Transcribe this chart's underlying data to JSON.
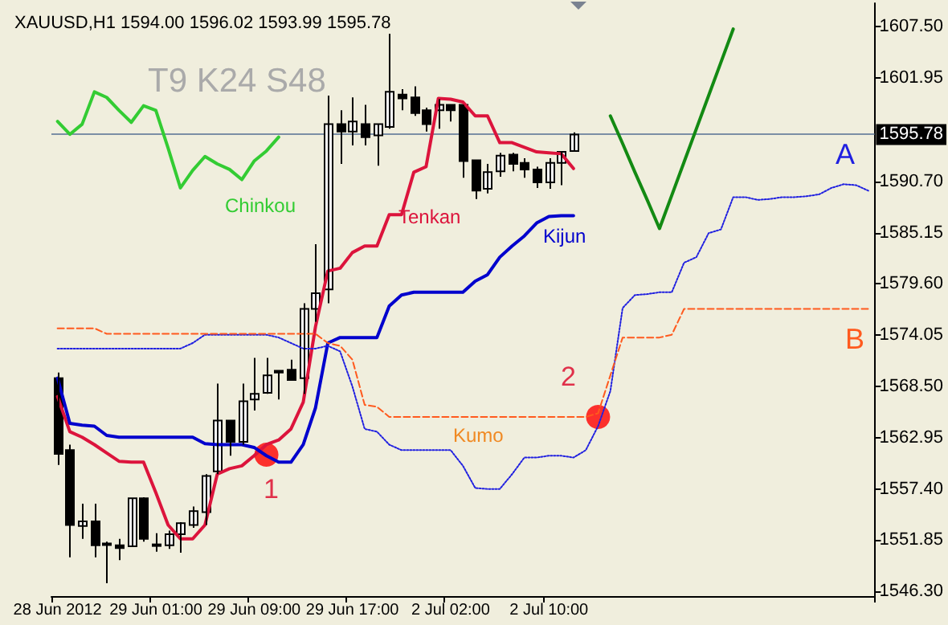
{
  "chart_data": {
    "type": "candlestick",
    "title": "XAUUSD,H1 1594.00 1596.02 1593.99 1595.78",
    "categories": [
      "28 Jun 2012",
      null,
      null,
      null,
      null,
      null,
      null,
      null,
      "29 Jun 01:00",
      null,
      null,
      null,
      null,
      null,
      null,
      null,
      "29 Jun 09:00",
      null,
      null,
      null,
      null,
      null,
      null,
      null,
      "29 Jun 17:00",
      null,
      null,
      null,
      null,
      null,
      null,
      null,
      "2 Jul 02:00",
      null,
      null,
      null,
      null,
      null,
      null,
      null,
      "2 Jul 10:00",
      null,
      null,
      null,
      null,
      null,
      null,
      null,
      null,
      null,
      null,
      null,
      null,
      null,
      null,
      null,
      null,
      null,
      null,
      null,
      null,
      null,
      null,
      null,
      null,
      null,
      null
    ],
    "ohlc": [
      [
        1569.4,
        1570.0,
        1560.0,
        1561.2
      ],
      [
        1561.6,
        1562.2,
        1550.0,
        1553.5
      ],
      [
        1553.4,
        1555.8,
        1552.0,
        1553.9
      ],
      [
        1553.9,
        1555.8,
        1550.0,
        1551.3
      ],
      [
        1551.4,
        1551.7,
        1547.2,
        1551.5
      ],
      [
        1551.3,
        1552.0,
        1549.7,
        1551.0
      ],
      [
        1551.2,
        1556.4,
        1551.2,
        1556.4
      ],
      [
        1556.4,
        1556.5,
        1551.7,
        1552.0
      ],
      [
        1551.3,
        1552.6,
        1550.6,
        1551.4
      ],
      [
        1551.3,
        1552.9,
        1550.9,
        1552.5
      ],
      [
        1552.5,
        1553.8,
        1550.5,
        1553.7
      ],
      [
        1553.5,
        1555.5,
        1553.2,
        1555.0
      ],
      [
        1554.9,
        1559.0,
        1553.5,
        1558.8
      ],
      [
        1559.3,
        1568.8,
        1559.0,
        1564.8
      ],
      [
        1564.8,
        1564.8,
        1561.0,
        1562.5
      ],
      [
        1562.5,
        1568.8,
        1562.2,
        1566.9
      ],
      [
        1567.1,
        1571.6,
        1565.9,
        1567.7
      ],
      [
        1567.8,
        1571.6,
        1567.7,
        1569.7
      ],
      [
        1570.2,
        1570.2,
        1567.1,
        1570.0
      ],
      [
        1570.3,
        1571.4,
        1569.2,
        1569.2
      ],
      [
        1569.4,
        1577.5,
        1567.7,
        1576.9
      ],
      [
        1576.9,
        1583.9,
        1575.5,
        1578.6
      ],
      [
        1579.0,
        1600.0,
        1577.5,
        1596.9
      ],
      [
        1596.9,
        1598.4,
        1592.6,
        1596.1
      ],
      [
        1596.1,
        1599.8,
        1594.6,
        1597.2
      ],
      [
        1596.9,
        1599.0,
        1594.6,
        1595.5
      ],
      [
        1595.7,
        1596.9,
        1592.4,
        1596.9
      ],
      [
        1596.6,
        1606.7,
        1596.4,
        1600.4
      ],
      [
        1600.1,
        1600.7,
        1598.4,
        1599.7
      ],
      [
        1599.8,
        1601.0,
        1597.8,
        1598.1
      ],
      [
        1598.4,
        1598.7,
        1596.1,
        1596.9
      ],
      [
        1598.4,
        1599.6,
        1596.4,
        1599.0
      ],
      [
        1599.0,
        1599.0,
        1597.2,
        1598.4
      ],
      [
        1599.0,
        1599.0,
        1591.1,
        1592.9
      ],
      [
        1593.0,
        1593.0,
        1588.8,
        1589.7
      ],
      [
        1589.9,
        1592.6,
        1589.4,
        1591.7
      ],
      [
        1591.8,
        1593.8,
        1591.2,
        1593.5
      ],
      [
        1593.6,
        1593.8,
        1591.8,
        1592.6
      ],
      [
        1592.7,
        1593.2,
        1591.1,
        1592.0
      ],
      [
        1592.0,
        1592.3,
        1590.0,
        1590.6
      ],
      [
        1590.6,
        1593.2,
        1589.9,
        1592.7
      ],
      [
        1592.7,
        1594.0,
        1590.3,
        1593.9
      ],
      [
        1594.0,
        1596.02,
        1593.99,
        1595.78
      ],
      null,
      null,
      null,
      null,
      null,
      null,
      null,
      null,
      null,
      null,
      null,
      null,
      null,
      null,
      null,
      null,
      null,
      null,
      null,
      null,
      null,
      null,
      null,
      null
    ],
    "series": [
      {
        "name": "Chinkou",
        "type": "line",
        "color": "#33cc33",
        "values": [
          1597.2,
          1595.8,
          1596.9,
          1600.4,
          1599.8,
          1598.4,
          1597.1,
          1598.9,
          1598.4,
          1594.3,
          1590.0,
          1591.9,
          1593.4,
          1592.6,
          1592.0,
          1590.9,
          1592.9,
          1594.0,
          1595.5,
          null,
          null,
          null,
          null,
          null,
          null,
          null,
          null,
          null,
          null,
          null,
          null,
          null,
          null,
          null,
          null,
          null,
          null,
          null,
          null,
          null,
          null,
          null,
          null,
          null,
          null,
          null,
          null,
          null,
          null,
          null,
          null,
          null,
          null,
          null,
          null,
          null,
          null,
          null,
          null,
          null,
          null,
          null,
          null,
          null,
          null,
          null,
          null
        ]
      },
      {
        "name": "Tenkan",
        "type": "line",
        "color": "#dc143c",
        "values": [
          1567.4,
          1563.6,
          1563.0,
          1562.2,
          1561.3,
          1560.4,
          1560.3,
          1560.3,
          1557.0,
          1553.5,
          1552.0,
          1552.0,
          1553.5,
          1559.0,
          1559.6,
          1559.9,
          1561.0,
          1562.2,
          1562.7,
          1563.9,
          1566.8,
          1575.0,
          1581.0,
          1581.3,
          1583.0,
          1583.7,
          1583.7,
          1587.1,
          1587.1,
          1591.7,
          1592.3,
          1599.7,
          1599.6,
          1599.3,
          1597.8,
          1597.8,
          1594.9,
          1594.9,
          1594.4,
          1593.9,
          1593.8,
          1593.7,
          1592.1,
          null,
          null,
          null,
          null,
          null,
          null,
          null,
          null,
          null,
          null,
          null,
          null,
          null,
          null,
          null,
          null,
          null,
          null,
          null,
          null,
          null,
          null,
          null,
          null
        ]
      },
      {
        "name": "Kijun",
        "type": "line",
        "color": "#0000cd",
        "values": [
          1569.4,
          1564.5,
          1564.3,
          1564.2,
          1563.2,
          1563.0,
          1563.0,
          1563.0,
          1563.0,
          1563.0,
          1563.0,
          1563.0,
          1562.3,
          1562.2,
          1562.2,
          1562.2,
          1561.9,
          1561.0,
          1560.3,
          1560.3,
          1562.2,
          1566.2,
          1573.2,
          1573.8,
          1573.8,
          1573.8,
          1573.8,
          1577.2,
          1578.4,
          1578.7,
          1578.7,
          1578.7,
          1578.7,
          1578.7,
          1579.9,
          1580.6,
          1582.5,
          1583.7,
          1584.8,
          1586.2,
          1586.9,
          1587.0,
          1587.0,
          null,
          null,
          null,
          null,
          null,
          null,
          null,
          null,
          null,
          null,
          null,
          null,
          null,
          null,
          null,
          null,
          null,
          null,
          null,
          null,
          null,
          null,
          null,
          null
        ]
      },
      {
        "name": "A",
        "type": "line",
        "color": "#2020e0",
        "line_style": "dotted",
        "values": [
          1572.6,
          1572.6,
          1572.6,
          1572.6,
          1572.6,
          1572.6,
          1572.6,
          1572.6,
          1572.6,
          1572.6,
          1572.6,
          1573.2,
          1574.1,
          1574.1,
          1574.1,
          1574.1,
          1574.1,
          1574.1,
          1573.8,
          1573.2,
          1572.6,
          1572.6,
          1572.9,
          1572.3,
          1568.5,
          1563.9,
          1563.6,
          1562.2,
          1561.6,
          1561.6,
          1561.6,
          1561.6,
          1561.6,
          1559.9,
          1557.5,
          1557.4,
          1557.4,
          1559.0,
          1560.8,
          1560.8,
          1561.0,
          1561.0,
          1560.8,
          1561.6,
          1564.2,
          1568.0,
          1577.0,
          1578.4,
          1578.5,
          1578.7,
          1578.7,
          1581.9,
          1582.5,
          1585.1,
          1585.5,
          1589.0,
          1589.0,
          1588.7,
          1588.8,
          1589.0,
          1589.0,
          1589.1,
          1589.3,
          1590.0,
          1590.4,
          1590.3,
          1589.7
        ]
      },
      {
        "name": "B",
        "type": "line",
        "color": "#ff5a1e",
        "line_style": "dashed",
        "values": [
          1574.8,
          1574.8,
          1574.8,
          1574.8,
          1574.2,
          1574.2,
          1574.2,
          1574.2,
          1574.2,
          1574.2,
          1574.2,
          1574.2,
          1574.2,
          1574.2,
          1574.2,
          1574.2,
          1574.2,
          1574.2,
          1574.2,
          1574.2,
          1574.2,
          1574.2,
          1573.2,
          1572.9,
          1571.4,
          1566.5,
          1566.3,
          1565.2,
          1565.2,
          1565.2,
          1565.2,
          1565.2,
          1565.2,
          1565.2,
          1565.2,
          1565.2,
          1565.2,
          1565.2,
          1565.2,
          1565.2,
          1565.2,
          1565.2,
          1565.2,
          1565.2,
          1565.6,
          1569.7,
          1573.8,
          1573.8,
          1573.8,
          1573.8,
          1574.1,
          1576.9,
          1576.9,
          1576.9,
          1576.9,
          1576.9,
          1576.9,
          1576.9,
          1576.9,
          1576.9,
          1576.9,
          1576.9,
          1576.9,
          1576.9,
          1576.9,
          1576.9,
          1576.9
        ]
      },
      {
        "type": "line",
        "color": "#138a13",
        "values": [
          null,
          null,
          null,
          null,
          null,
          null,
          null,
          null,
          null,
          null,
          null,
          null,
          null,
          null,
          null,
          null,
          null,
          null,
          null,
          null,
          null,
          null,
          null,
          null,
          null,
          null,
          null,
          null,
          null,
          null,
          null,
          null,
          null,
          null,
          null,
          null,
          null,
          null,
          null,
          null,
          null,
          null,
          null,
          null,
          null,
          1597.8,
          1594.8,
          1591.7,
          1588.7,
          1585.6,
          1589.2,
          1592.8,
          1596.4,
          1600.0,
          1603.6,
          1607.2,
          null,
          null,
          null,
          null,
          null,
          null,
          null,
          null,
          null,
          null,
          null
        ]
      },
      {
        "type": "scatter",
        "color": "#ff0000",
        "marker": "circle",
        "values": [
          null,
          null,
          null,
          null,
          null,
          null,
          null,
          null,
          null,
          null,
          null,
          null,
          null,
          null,
          null,
          null,
          null,
          1561.1,
          null,
          null,
          null,
          null,
          null,
          null,
          null,
          null,
          null,
          null,
          null,
          null,
          null,
          null,
          null,
          null,
          null,
          null,
          null,
          null,
          null,
          null,
          null,
          null,
          null,
          null,
          1565.2,
          null,
          null,
          null,
          null,
          null,
          null,
          null,
          null,
          null,
          null,
          null,
          null,
          null,
          null,
          null,
          null,
          null,
          null,
          null,
          null,
          null,
          null
        ]
      }
    ],
    "annotations": [
      "T9 K24 S48",
      "Kumo",
      "1",
      "2"
    ],
    "ref_lines": [
      {
        "axis": "y",
        "value": 1595.78,
        "label": "1595.78",
        "color": "#7b8ea5"
      }
    ],
    "ylim": [
      1545.8,
      1610
    ],
    "yticks": [
      {
        "value": 1546.3,
        "label": "1546.30"
      },
      {
        "value": 1551.85,
        "label": "1551.85"
      },
      {
        "value": 1557.4,
        "label": "1557.40"
      },
      {
        "value": 1562.95,
        "label": "1562.95"
      },
      {
        "value": 1568.5,
        "label": "1568.50"
      },
      {
        "value": 1574.05,
        "label": "1574.05"
      },
      {
        "value": 1579.6,
        "label": "1579.60"
      },
      {
        "value": 1585.15,
        "label": "1585.15"
      },
      {
        "value": 1590.7,
        "label": "1590.70"
      },
      {
        "value": 1601.95,
        "label": "1601.95"
      },
      {
        "value": 1607.5,
        "label": "1607.50"
      }
    ],
    "marker": "none",
    "grid": false,
    "legend": false
  }
}
